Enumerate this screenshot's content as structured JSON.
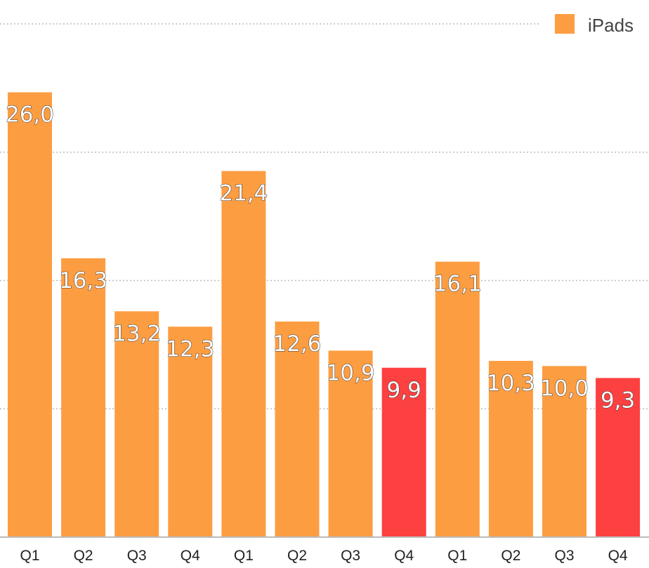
{
  "chart_data": {
    "type": "bar",
    "categories": [
      "Q1",
      "Q2",
      "Q3",
      "Q4",
      "Q1",
      "Q2",
      "Q3",
      "Q4",
      "Q1",
      "Q2",
      "Q3",
      "Q4"
    ],
    "series": [
      {
        "name": "iPads",
        "values": [
          26.0,
          16.3,
          13.2,
          12.3,
          21.4,
          12.6,
          10.9,
          9.9,
          16.1,
          10.3,
          10.0,
          9.3
        ],
        "value_labels": [
          "26,0",
          "16,3",
          "13,2",
          "12,3",
          "21,4",
          "12,6",
          "10,9",
          "9,9",
          "16,1",
          "10,3",
          "10,0",
          "9,3"
        ],
        "color": "#FD9D42",
        "highlight_color": "#FD4040",
        "highlighted": [
          false,
          false,
          false,
          false,
          false,
          false,
          false,
          true,
          false,
          false,
          false,
          true
        ]
      }
    ],
    "title": "",
    "xlabel": "",
    "ylabel": "",
    "ylim": [
      0,
      30
    ],
    "grid": true,
    "legend": "top-right"
  }
}
